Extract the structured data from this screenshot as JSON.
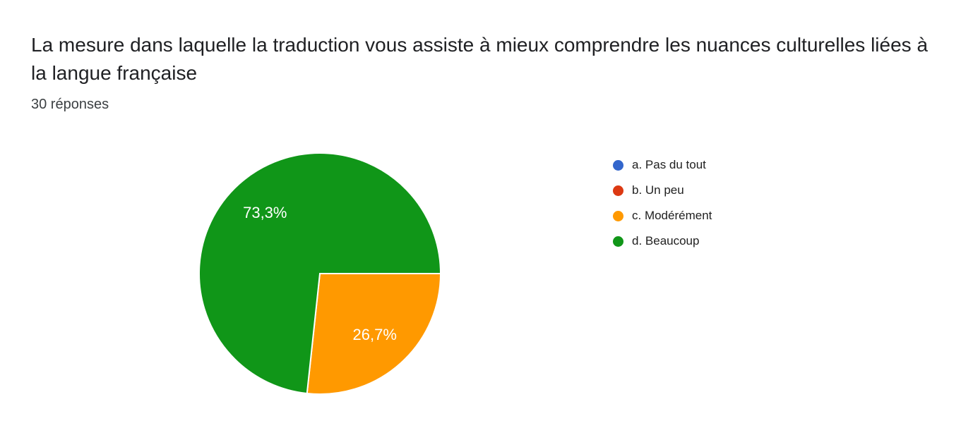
{
  "header": {
    "title": "La mesure dans laquelle la traduction vous assiste à mieux comprendre les nuances culturelles liées à la langue française",
    "responses_count": "30 réponses"
  },
  "chart_data": {
    "type": "pie",
    "title": "La mesure dans laquelle la traduction vous assiste à mieux comprendre les nuances culturelles liées à la langue française",
    "subtitle": "30 réponses",
    "legend_position": "right",
    "start_angle_deg": 0,
    "direction": "clockwise",
    "categories": [
      "a. Pas du tout",
      "b. Un peu",
      "c. Modérément",
      "d. Beaucoup"
    ],
    "values_percent": [
      0,
      0,
      26.7,
      73.3
    ],
    "display_labels": [
      "",
      "",
      "26,7%",
      "73,3%"
    ],
    "colors": [
      "#3366CC",
      "#DC3912",
      "#FF9900",
      "#109618"
    ],
    "slice_border_color": "#ffffff"
  }
}
